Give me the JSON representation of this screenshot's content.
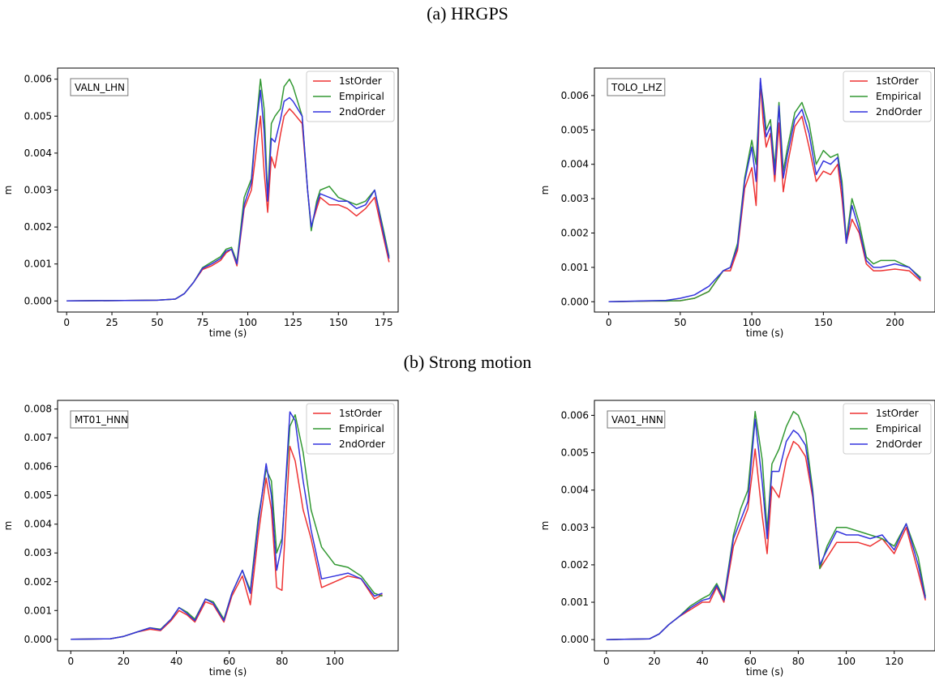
{
  "sections": [
    {
      "title": "(a) HRGPS"
    },
    {
      "title": "(b) Strong motion"
    }
  ],
  "series_names": [
    "1stOrder",
    "Empirical",
    "2ndOrder"
  ],
  "colors": {
    "1stOrder": "#ee3333",
    "Empirical": "#339933",
    "2ndOrder": "#3333dd"
  },
  "chart_data": [
    {
      "type": "line",
      "station": "VALN_LHN",
      "xlabel": "time (s)",
      "ylabel": "m",
      "xlim": [
        -5,
        183
      ],
      "ylim": [
        -0.0003,
        0.0063
      ],
      "xticks": [
        0,
        25,
        50,
        75,
        100,
        125,
        150,
        175
      ],
      "yticks": [
        "0.000",
        "0.001",
        "0.002",
        "0.003",
        "0.004",
        "0.005",
        "0.006"
      ],
      "legend": "top-right",
      "series": [
        {
          "name": "1stOrder",
          "x": [
            0,
            50,
            60,
            65,
            70,
            75,
            80,
            85,
            88,
            91,
            94,
            98,
            102,
            104,
            107,
            109,
            111,
            113,
            115,
            118,
            120,
            123,
            125,
            130,
            133,
            135,
            138,
            140,
            145,
            150,
            155,
            160,
            165,
            170,
            175,
            178
          ],
          "y": [
            0,
            2e-05,
            5e-05,
            0.0002,
            0.0005,
            0.00085,
            0.00095,
            0.0011,
            0.0013,
            0.0014,
            0.00095,
            0.0025,
            0.003,
            0.0038,
            0.005,
            0.0035,
            0.0024,
            0.0039,
            0.0036,
            0.0045,
            0.005,
            0.0052,
            0.0051,
            0.0048,
            0.003,
            0.002,
            0.0025,
            0.0028,
            0.0026,
            0.0026,
            0.0025,
            0.0023,
            0.0025,
            0.0028,
            0.0017,
            0.00105
          ]
        },
        {
          "name": "Empirical",
          "x": [
            0,
            50,
            60,
            65,
            70,
            75,
            80,
            85,
            88,
            91,
            94,
            98,
            102,
            104,
            107,
            109,
            111,
            113,
            115,
            118,
            120,
            123,
            125,
            130,
            133,
            135,
            138,
            140,
            145,
            150,
            155,
            160,
            165,
            170,
            175,
            178
          ],
          "y": [
            0,
            2e-05,
            5e-05,
            0.0002,
            0.0005,
            0.0009,
            0.00105,
            0.0012,
            0.0014,
            0.00145,
            0.00105,
            0.0028,
            0.0033,
            0.0045,
            0.006,
            0.0052,
            0.0028,
            0.0048,
            0.005,
            0.0052,
            0.0058,
            0.006,
            0.0058,
            0.005,
            0.003,
            0.0019,
            0.0027,
            0.003,
            0.0031,
            0.0028,
            0.0027,
            0.0026,
            0.0027,
            0.003,
            0.0019,
            0.0012
          ]
        },
        {
          "name": "2ndOrder",
          "x": [
            0,
            50,
            60,
            65,
            70,
            75,
            80,
            85,
            88,
            91,
            94,
            98,
            102,
            104,
            107,
            109,
            111,
            113,
            115,
            118,
            120,
            123,
            125,
            130,
            133,
            135,
            138,
            140,
            145,
            150,
            155,
            160,
            165,
            170,
            175,
            178
          ],
          "y": [
            0,
            2e-05,
            5e-05,
            0.0002,
            0.0005,
            0.00088,
            0.001,
            0.00115,
            0.00135,
            0.0014,
            0.001,
            0.0026,
            0.0032,
            0.0044,
            0.0057,
            0.0046,
            0.0027,
            0.0044,
            0.0043,
            0.0049,
            0.0054,
            0.0055,
            0.0054,
            0.005,
            0.003,
            0.002,
            0.0026,
            0.0029,
            0.0028,
            0.0027,
            0.0027,
            0.0025,
            0.0026,
            0.003,
            0.0018,
            0.00115
          ]
        }
      ]
    },
    {
      "type": "line",
      "station": "TOLO_LHZ",
      "xlabel": "time (s)",
      "ylabel": "m",
      "xlim": [
        -10,
        228
      ],
      "ylim": [
        -0.0003,
        0.0068
      ],
      "xticks": [
        0,
        50,
        100,
        150,
        200
      ],
      "yticks": [
        "0.000",
        "0.001",
        "0.002",
        "0.003",
        "0.004",
        "0.005",
        "0.006"
      ],
      "legend": "top-right",
      "series": [
        {
          "name": "1stOrder",
          "x": [
            0,
            30,
            40,
            50,
            60,
            70,
            80,
            85,
            90,
            95,
            100,
            103,
            106,
            108,
            110,
            113,
            116,
            119,
            122,
            125,
            130,
            135,
            140,
            145,
            150,
            155,
            160,
            163,
            166,
            170,
            175,
            180,
            185,
            190,
            200,
            210,
            218
          ],
          "y": [
            0,
            2e-05,
            2e-05,
            3e-05,
            0.0001,
            0.0003,
            0.0009,
            0.0009,
            0.0015,
            0.0033,
            0.0039,
            0.0028,
            0.0064,
            0.0052,
            0.0045,
            0.0049,
            0.0035,
            0.0052,
            0.0032,
            0.004,
            0.0051,
            0.0054,
            0.0045,
            0.0035,
            0.0038,
            0.0037,
            0.004,
            0.003,
            0.0017,
            0.0024,
            0.002,
            0.0011,
            0.0009,
            0.0009,
            0.00095,
            0.0009,
            0.0006
          ]
        },
        {
          "name": "Empirical",
          "x": [
            0,
            30,
            40,
            50,
            60,
            70,
            80,
            85,
            90,
            95,
            100,
            103,
            106,
            108,
            110,
            113,
            116,
            119,
            122,
            125,
            130,
            135,
            140,
            145,
            150,
            155,
            160,
            163,
            166,
            170,
            175,
            180,
            185,
            190,
            200,
            210,
            218
          ],
          "y": [
            0,
            2e-05,
            2e-05,
            3e-05,
            0.0001,
            0.0003,
            0.0009,
            0.001,
            0.0017,
            0.0036,
            0.0047,
            0.004,
            0.0064,
            0.0058,
            0.005,
            0.0053,
            0.0039,
            0.0058,
            0.0038,
            0.0045,
            0.0055,
            0.0058,
            0.0052,
            0.004,
            0.0044,
            0.0042,
            0.0043,
            0.0035,
            0.0018,
            0.003,
            0.0023,
            0.0013,
            0.0011,
            0.0012,
            0.0012,
            0.001,
            0.0007
          ]
        },
        {
          "name": "2ndOrder",
          "x": [
            0,
            30,
            40,
            50,
            60,
            70,
            80,
            85,
            90,
            95,
            100,
            103,
            106,
            108,
            110,
            113,
            116,
            119,
            122,
            125,
            130,
            135,
            140,
            145,
            150,
            155,
            160,
            163,
            166,
            170,
            175,
            180,
            185,
            190,
            200,
            210,
            218
          ],
          "y": [
            0,
            3e-05,
            4e-05,
            0.0001,
            0.0002,
            0.00045,
            0.0009,
            0.001,
            0.0016,
            0.0035,
            0.0045,
            0.0035,
            0.0065,
            0.0056,
            0.0048,
            0.0051,
            0.0037,
            0.0057,
            0.0036,
            0.0043,
            0.0053,
            0.0056,
            0.0049,
            0.0037,
            0.0041,
            0.004,
            0.0042,
            0.0033,
            0.0017,
            0.0028,
            0.0021,
            0.0012,
            0.001,
            0.001,
            0.0011,
            0.001,
            0.00065
          ]
        }
      ]
    },
    {
      "type": "line",
      "station": "MT01_HNN",
      "xlabel": "time (s)",
      "ylabel": "m",
      "xlim": [
        -5,
        124
      ],
      "ylim": [
        -0.0004,
        0.0083
      ],
      "xticks": [
        0,
        20,
        40,
        60,
        80,
        100
      ],
      "yticks": [
        "0.000",
        "0.001",
        "0.002",
        "0.003",
        "0.004",
        "0.005",
        "0.006",
        "0.007",
        "0.008"
      ],
      "legend": "top-right",
      "series": [
        {
          "name": "1stOrder",
          "x": [
            0,
            15,
            20,
            25,
            30,
            34,
            38,
            41,
            44,
            47,
            51,
            54,
            58,
            61,
            65,
            68,
            71,
            74,
            76,
            78,
            80,
            83,
            85,
            88,
            91,
            95,
            100,
            105,
            110,
            115,
            118
          ],
          "y": [
            0,
            2e-05,
            0.0001,
            0.00025,
            0.00035,
            0.0003,
            0.00065,
            0.001,
            0.00085,
            0.0006,
            0.0013,
            0.0012,
            0.0006,
            0.0015,
            0.0022,
            0.0012,
            0.0036,
            0.0056,
            0.0045,
            0.0018,
            0.0017,
            0.0067,
            0.0062,
            0.0045,
            0.0035,
            0.0018,
            0.002,
            0.0022,
            0.0021,
            0.0014,
            0.00155
          ]
        },
        {
          "name": "Empirical",
          "x": [
            0,
            15,
            20,
            25,
            30,
            34,
            38,
            41,
            44,
            47,
            51,
            54,
            58,
            61,
            65,
            68,
            71,
            74,
            76,
            78,
            80,
            83,
            85,
            88,
            91,
            95,
            100,
            105,
            110,
            115,
            118
          ],
          "y": [
            0,
            2e-05,
            0.0001,
            0.00025,
            0.0004,
            0.00035,
            0.0007,
            0.0011,
            0.00095,
            0.0007,
            0.0014,
            0.0013,
            0.0007,
            0.0016,
            0.0024,
            0.0017,
            0.0042,
            0.0059,
            0.0055,
            0.003,
            0.0035,
            0.0074,
            0.0078,
            0.0065,
            0.0045,
            0.0032,
            0.0026,
            0.0025,
            0.0022,
            0.0016,
            0.0015
          ]
        },
        {
          "name": "2ndOrder",
          "x": [
            0,
            15,
            20,
            25,
            30,
            34,
            38,
            41,
            44,
            47,
            51,
            54,
            58,
            61,
            65,
            68,
            71,
            74,
            76,
            78,
            80,
            83,
            85,
            88,
            91,
            95,
            100,
            105,
            110,
            115,
            118
          ],
          "y": [
            0,
            2e-05,
            0.0001,
            0.00025,
            0.0004,
            0.00033,
            0.0007,
            0.0011,
            0.0009,
            0.00065,
            0.0014,
            0.00125,
            0.00065,
            0.0016,
            0.0024,
            0.0016,
            0.004,
            0.0061,
            0.005,
            0.0024,
            0.0033,
            0.0079,
            0.0076,
            0.0055,
            0.0038,
            0.0021,
            0.0022,
            0.0023,
            0.0021,
            0.0015,
            0.0016
          ]
        }
      ]
    },
    {
      "type": "line",
      "station": "VA01_HNN",
      "xlabel": "time (s)",
      "ylabel": "m",
      "xlim": [
        -5,
        137
      ],
      "ylim": [
        -0.0003,
        0.0064
      ],
      "xticks": [
        0,
        20,
        40,
        60,
        80,
        100,
        120
      ],
      "yticks": [
        "0.000",
        "0.001",
        "0.002",
        "0.003",
        "0.004",
        "0.005",
        "0.006"
      ],
      "legend": "top-right",
      "series": [
        {
          "name": "1stOrder",
          "x": [
            0,
            18,
            22,
            26,
            30,
            35,
            40,
            43,
            46,
            49,
            53,
            56,
            59,
            62,
            65,
            67,
            69,
            72,
            75,
            78,
            80,
            83,
            86,
            89,
            92,
            96,
            100,
            105,
            110,
            115,
            120,
            125,
            130,
            133
          ],
          "y": [
            0,
            2e-05,
            0.00015,
            0.0004,
            0.0006,
            0.0008,
            0.001,
            0.001,
            0.0014,
            0.001,
            0.0025,
            0.003,
            0.0035,
            0.0051,
            0.0033,
            0.0023,
            0.0041,
            0.0038,
            0.0048,
            0.0053,
            0.0052,
            0.0049,
            0.0038,
            0.0019,
            0.0022,
            0.0026,
            0.0026,
            0.0026,
            0.0025,
            0.0027,
            0.0023,
            0.003,
            0.0018,
            0.00105
          ]
        },
        {
          "name": "Empirical",
          "x": [
            0,
            18,
            22,
            26,
            30,
            35,
            40,
            43,
            46,
            49,
            53,
            56,
            59,
            62,
            65,
            67,
            69,
            72,
            75,
            78,
            80,
            83,
            86,
            89,
            92,
            96,
            100,
            105,
            110,
            115,
            120,
            125,
            130,
            133
          ],
          "y": [
            0,
            2e-05,
            0.00015,
            0.0004,
            0.0006,
            0.0009,
            0.0011,
            0.0012,
            0.0015,
            0.0011,
            0.0028,
            0.0035,
            0.004,
            0.0061,
            0.0048,
            0.0029,
            0.0047,
            0.0051,
            0.0057,
            0.0061,
            0.006,
            0.0055,
            0.004,
            0.0019,
            0.0025,
            0.003,
            0.003,
            0.0029,
            0.0028,
            0.0027,
            0.0025,
            0.0031,
            0.0022,
            0.00115
          ]
        },
        {
          "name": "2ndOrder",
          "x": [
            0,
            18,
            22,
            26,
            30,
            35,
            40,
            43,
            46,
            49,
            53,
            56,
            59,
            62,
            65,
            67,
            69,
            72,
            75,
            78,
            80,
            83,
            86,
            89,
            92,
            96,
            100,
            105,
            110,
            115,
            120,
            125,
            130,
            133
          ],
          "y": [
            0,
            2e-05,
            0.00015,
            0.0004,
            0.0006,
            0.00085,
            0.00105,
            0.0011,
            0.00145,
            0.00105,
            0.0027,
            0.0032,
            0.0037,
            0.0059,
            0.0042,
            0.0027,
            0.0045,
            0.0045,
            0.0053,
            0.0056,
            0.0055,
            0.0052,
            0.0039,
            0.002,
            0.0024,
            0.0029,
            0.0028,
            0.0028,
            0.0027,
            0.0028,
            0.0024,
            0.0031,
            0.002,
            0.0011
          ]
        }
      ]
    }
  ]
}
